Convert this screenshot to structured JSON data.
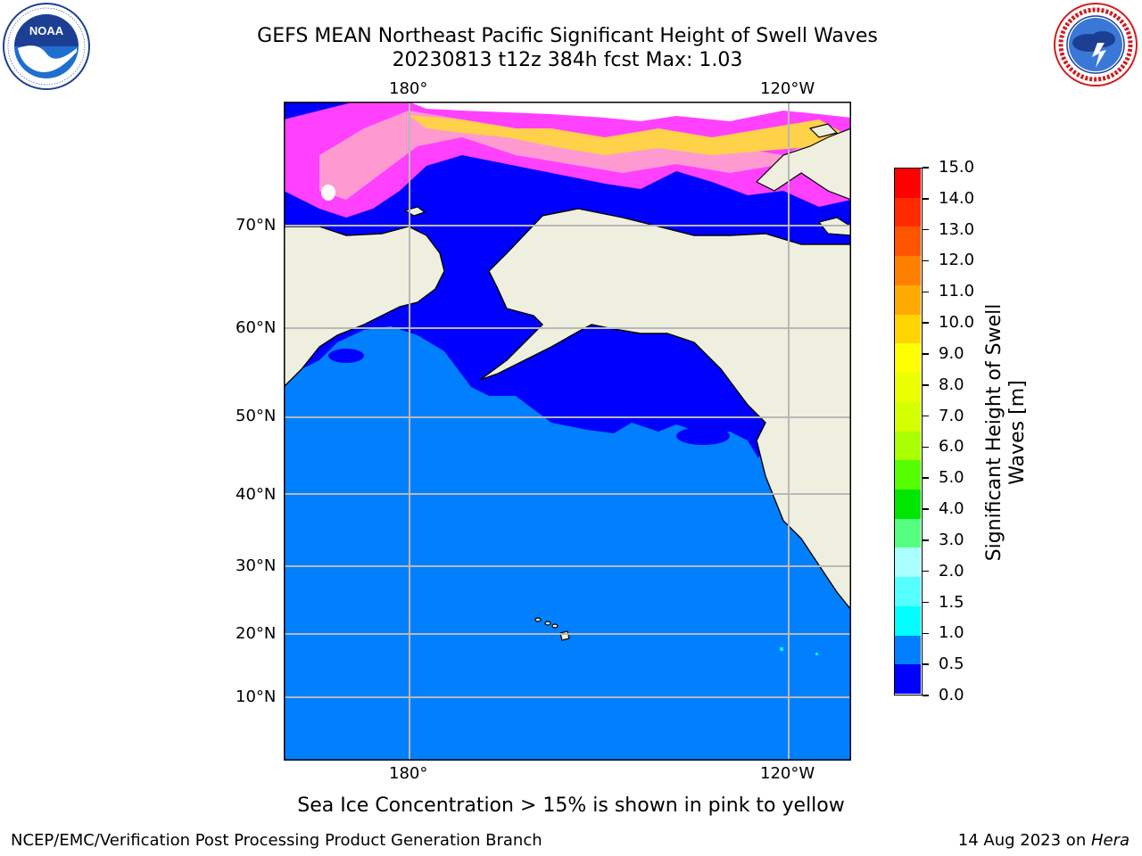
{
  "header": {
    "title_line1": "GEFS MEAN Northeast Pacific Significant Height of Swell Waves",
    "title_line2": "20230813 t12z 384h fcst   Max: 1.03"
  },
  "logos": {
    "left": {
      "name": "noaa-logo",
      "text": "NOAA",
      "ring_text": "NATIONAL OCEANIC AND ATMOSPHERIC ADMINISTRATION · U.S. DEPARTMENT OF COMMERCE"
    },
    "right": {
      "name": "nws-logo",
      "ring_text": "NATIONAL WEATHER SERVICE"
    }
  },
  "map": {
    "lon_labels_top": [
      "180°",
      "120°W"
    ],
    "lon_labels_bottom": [
      "180°",
      "120°W"
    ],
    "lat_labels": [
      "70°N",
      "60°N",
      "50°N",
      "40°N",
      "30°N",
      "20°N",
      "10°N"
    ]
  },
  "colorbar": {
    "label": "Significant Height of Swell Waves [m]",
    "ticks": [
      "15.0",
      "14.0",
      "13.0",
      "12.0",
      "11.0",
      "10.0",
      "9.0",
      "8.0",
      "7.0",
      "6.0",
      "5.0",
      "4.0",
      "3.0",
      "2.0",
      "1.5",
      "1.0",
      "0.5",
      "0.0"
    ],
    "colors_top_to_bottom": [
      "#ff0000",
      "#ff2a00",
      "#ff5500",
      "#ff8000",
      "#ffaa00",
      "#ffd400",
      "#ffff00",
      "#eaff00",
      "#d4ff00",
      "#aaff00",
      "#55ff00",
      "#00e600",
      "#55ff80",
      "#aaffff",
      "#55ffff",
      "#00ffff",
      "#0080ff",
      "#0000ff"
    ]
  },
  "caption": "Sea Ice Concentration > 15% is shown in pink to yellow",
  "footer": {
    "left": "NCEP/EMC/Verification Post Processing Product Generation Branch",
    "right_prefix": "14 Aug 2023 on ",
    "right_host": "Hera"
  }
}
